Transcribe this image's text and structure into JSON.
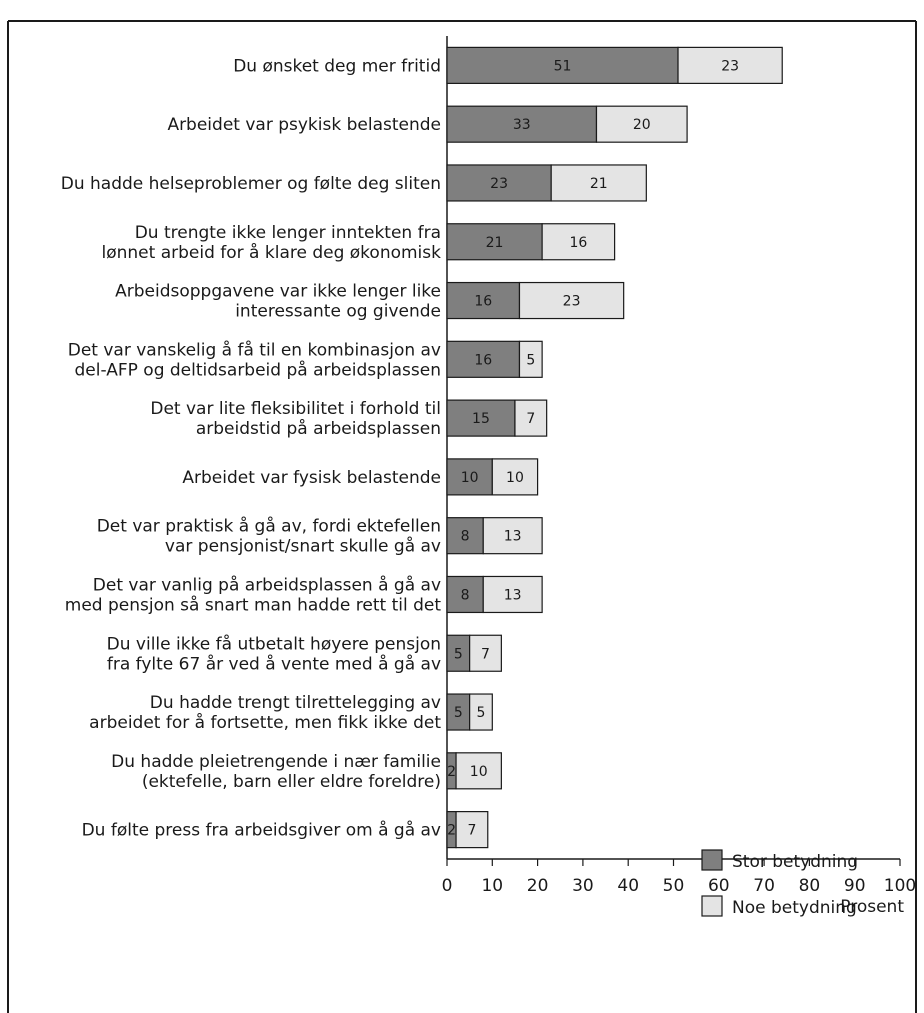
{
  "chart_data": {
    "type": "bar",
    "orientation": "horizontal",
    "stacked": true,
    "categories": [
      "Du ønsket deg mer fritid",
      "Arbeidet var psykisk belastende",
      "Du hadde helseproblemer og følte deg sliten",
      "Du trengte ikke lenger inntekten fra\nlønnet arbeid for å klare deg økonomisk",
      "Arbeidsoppgavene var ikke lenger like\ninteressante og givende",
      "Det var vanskelig å få til en kombinasjon av\ndel-AFP og deltidsarbeid på arbeidsplassen",
      "Det var lite fleksibilitet i forhold til\narbeidstid på arbeidsplassen",
      "Arbeidet var fysisk belastende",
      "Det var praktisk å gå av, fordi ektefellen\nvar pensjonist/snart skulle gå av",
      "Det var vanlig på arbeidsplassen å gå av\nmed pensjon så snart man hadde rett til det",
      "Du ville ikke få utbetalt høyere pensjon\nfra fylte 67 år ved å vente med å gå av",
      "Du hadde trengt tilrettelegging av\narbeidet for å fortsette, men fikk ikke det",
      "Du hadde pleietrengende i nær familie\n(ektefelle, barn eller eldre foreldre)",
      "Du følte press fra arbeidsgiver om å gå av"
    ],
    "series": [
      {
        "name": "Stor betydning",
        "color": "#7f7f7f",
        "values": [
          51,
          33,
          23,
          21,
          16,
          16,
          15,
          10,
          8,
          8,
          5,
          5,
          2,
          2
        ]
      },
      {
        "name": "Noe betydning",
        "color": "#e4e4e4",
        "values": [
          23,
          20,
          21,
          16,
          23,
          5,
          7,
          10,
          13,
          13,
          7,
          5,
          10,
          7
        ]
      }
    ],
    "xlabel": "Prosent",
    "xlim": [
      0,
      100
    ],
    "xticks": [
      0,
      10,
      20,
      30,
      40,
      50,
      60,
      70,
      80,
      90,
      100
    ],
    "legend_position": "bottom-right",
    "grid": false
  }
}
